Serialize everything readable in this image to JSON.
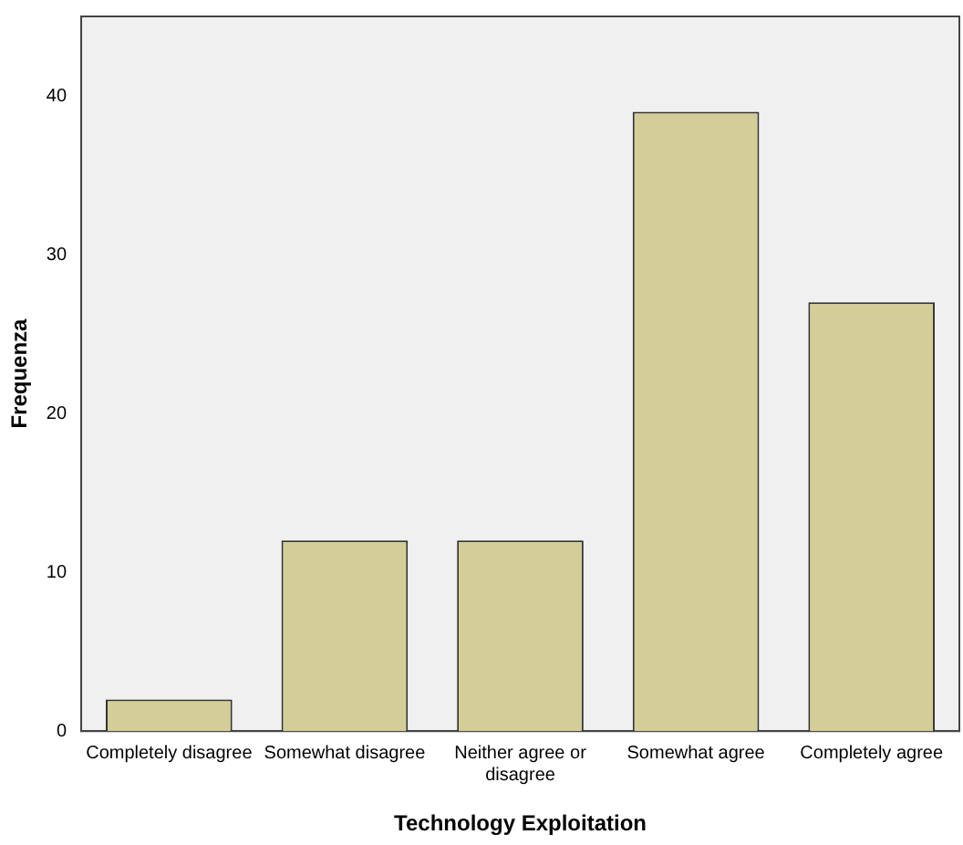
{
  "chart_data": {
    "type": "bar",
    "xlabel": "Technology Exploitation",
    "ylabel": "Frequenza",
    "categories": [
      "Completely disagree",
      "Somewhat disagree",
      "Neither agree or disagree",
      "Somewhat agree",
      "Completely agree"
    ],
    "values": [
      2,
      12,
      12,
      39,
      27
    ],
    "color": "#d3ce97",
    "ylim": [
      0,
      45
    ],
    "yticks": [
      0,
      10,
      20,
      30,
      40
    ],
    "grid": false,
    "legend": false
  }
}
